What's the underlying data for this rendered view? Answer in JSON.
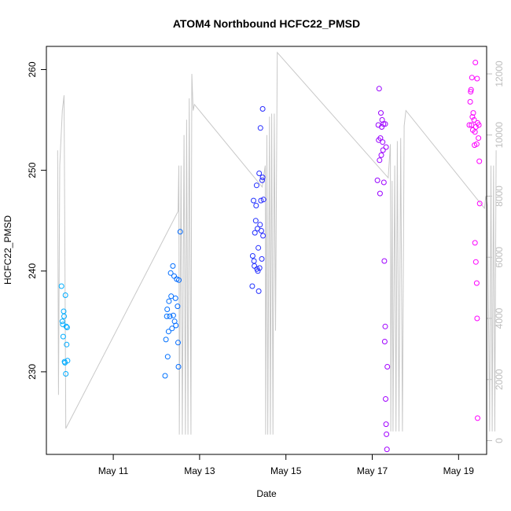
{
  "chart_data": {
    "type": "scatter",
    "title": "ATOM4 Northbound HCFC22_PMSD",
    "xlabel": "Date",
    "ylabel": "HCFC22_PMSD",
    "xlim": [
      9.45,
      19.65
    ],
    "ylim": [
      221.8,
      262.3
    ],
    "y2lim": [
      -450,
      12900
    ],
    "x_ticks": [
      {
        "value": 11,
        "label": "May 11"
      },
      {
        "value": 13,
        "label": "May 13"
      },
      {
        "value": 15,
        "label": "May 15"
      },
      {
        "value": 17,
        "label": "May 17"
      },
      {
        "value": 19,
        "label": "May 19"
      }
    ],
    "y_ticks": [
      230,
      240,
      250,
      260
    ],
    "y2_ticks": [
      0,
      2000,
      4000,
      6000,
      8000,
      10000,
      12000
    ],
    "altitude_trace": {
      "name": "secondary axis (gray line)",
      "color": "#c8c8c8",
      "points": [
        [
          9.71,
          9500
        ],
        [
          9.73,
          1500
        ],
        [
          9.76,
          9000
        ],
        [
          9.82,
          10800
        ],
        [
          9.86,
          11300
        ],
        [
          9.9,
          400
        ],
        [
          12.5,
          7500
        ],
        [
          12.52,
          9000
        ],
        [
          12.53,
          200
        ],
        [
          12.57,
          9000
        ],
        [
          12.6,
          200
        ],
        [
          12.64,
          10000
        ],
        [
          12.67,
          200
        ],
        [
          12.7,
          10500
        ],
        [
          12.73,
          200
        ],
        [
          12.76,
          11200
        ],
        [
          12.8,
          200
        ],
        [
          12.82,
          12000
        ],
        [
          12.85,
          10800
        ],
        [
          12.88,
          11000
        ],
        [
          14.45,
          8300
        ],
        [
          14.52,
          9000
        ],
        [
          14.53,
          200
        ],
        [
          14.56,
          10000
        ],
        [
          14.58,
          200
        ],
        [
          14.62,
          10600
        ],
        [
          14.64,
          200
        ],
        [
          14.67,
          10700
        ],
        [
          14.7,
          200
        ],
        [
          14.73,
          10700
        ],
        [
          14.76,
          3600
        ],
        [
          14.8,
          12700
        ],
        [
          17.37,
          8600
        ],
        [
          17.42,
          9700
        ],
        [
          17.43,
          300
        ],
        [
          17.46,
          8500
        ],
        [
          17.48,
          300
        ],
        [
          17.52,
          9000
        ],
        [
          17.55,
          300
        ],
        [
          17.58,
          9800
        ],
        [
          17.62,
          300
        ],
        [
          17.66,
          9900
        ],
        [
          17.7,
          300
        ],
        [
          17.74,
          10300
        ],
        [
          17.78,
          10800
        ],
        [
          19.6,
          7600
        ],
        [
          19.63,
          8000
        ],
        [
          19.67,
          7700
        ],
        [
          19.72,
          300
        ],
        [
          19.75,
          9000
        ],
        [
          19.78,
          300
        ],
        [
          19.81,
          9000
        ],
        [
          19.84,
          300
        ],
        [
          19.87,
          9500
        ]
      ]
    },
    "series": [
      {
        "name": "HCFC22_PMSD",
        "color_note": "color gradient cyan to magenta over time",
        "points": [
          [
            9.8,
            238.5
          ],
          [
            9.82,
            235.0
          ],
          [
            9.83,
            234.7
          ],
          [
            9.84,
            233.5
          ],
          [
            9.85,
            236.0
          ],
          [
            9.86,
            235.5
          ],
          [
            9.87,
            231.0
          ],
          [
            9.88,
            230.9
          ],
          [
            9.89,
            237.6
          ],
          [
            9.91,
            234.5
          ],
          [
            9.92,
            232.7
          ],
          [
            9.93,
            234.4
          ],
          [
            9.94,
            231.1
          ],
          [
            9.9,
            229.8
          ],
          [
            12.2,
            229.6
          ],
          [
            12.22,
            233.2
          ],
          [
            12.24,
            235.5
          ],
          [
            12.25,
            236.2
          ],
          [
            12.26,
            231.5
          ],
          [
            12.28,
            234.0
          ],
          [
            12.29,
            237.0
          ],
          [
            12.31,
            235.5
          ],
          [
            12.33,
            239.8
          ],
          [
            12.34,
            237.5
          ],
          [
            12.36,
            234.3
          ],
          [
            12.38,
            240.5
          ],
          [
            12.39,
            235.6
          ],
          [
            12.41,
            239.5
          ],
          [
            12.42,
            235.0
          ],
          [
            12.44,
            237.3
          ],
          [
            12.45,
            234.6
          ],
          [
            12.47,
            239.2
          ],
          [
            12.49,
            236.5
          ],
          [
            12.5,
            232.9
          ],
          [
            12.51,
            230.5
          ],
          [
            12.52,
            239.1
          ],
          [
            12.55,
            243.9
          ],
          [
            14.22,
            238.5
          ],
          [
            14.23,
            241.5
          ],
          [
            14.25,
            247.0
          ],
          [
            14.26,
            241.0
          ],
          [
            14.27,
            240.5
          ],
          [
            14.28,
            243.8
          ],
          [
            14.3,
            245.0
          ],
          [
            14.31,
            246.5
          ],
          [
            14.32,
            248.5
          ],
          [
            14.33,
            240.2
          ],
          [
            14.34,
            244.2
          ],
          [
            14.35,
            240.0
          ],
          [
            14.36,
            242.3
          ],
          [
            14.37,
            238.0
          ],
          [
            14.38,
            249.7
          ],
          [
            14.39,
            240.3
          ],
          [
            14.4,
            244.6
          ],
          [
            14.41,
            254.2
          ],
          [
            14.42,
            247.0
          ],
          [
            14.43,
            244.0
          ],
          [
            14.44,
            241.2
          ],
          [
            14.45,
            249.0
          ],
          [
            14.46,
            249.3
          ],
          [
            14.47,
            243.5
          ],
          [
            14.48,
            247.1
          ],
          [
            14.46,
            256.1
          ],
          [
            17.12,
            249.0
          ],
          [
            17.14,
            254.5
          ],
          [
            17.15,
            253.0
          ],
          [
            17.16,
            258.1
          ],
          [
            17.17,
            251.0
          ],
          [
            17.18,
            247.7
          ],
          [
            17.19,
            253.2
          ],
          [
            17.2,
            255.7
          ],
          [
            17.21,
            251.5
          ],
          [
            17.22,
            254.3
          ],
          [
            17.23,
            255.0
          ],
          [
            17.24,
            252.8
          ],
          [
            17.25,
            252.0
          ],
          [
            17.26,
            254.6
          ],
          [
            17.27,
            248.8
          ],
          [
            17.28,
            241.0
          ],
          [
            17.29,
            233.0
          ],
          [
            17.3,
            234.5
          ],
          [
            17.31,
            227.3
          ],
          [
            17.32,
            224.8
          ],
          [
            17.33,
            223.8
          ],
          [
            17.34,
            222.3
          ],
          [
            17.35,
            230.5
          ],
          [
            17.3,
            254.6
          ],
          [
            17.32,
            252.3
          ],
          [
            19.25,
            254.5
          ],
          [
            19.27,
            256.8
          ],
          [
            19.28,
            257.8
          ],
          [
            19.29,
            258.0
          ],
          [
            19.3,
            254.5
          ],
          [
            19.31,
            259.2
          ],
          [
            19.32,
            255.3
          ],
          [
            19.33,
            254.0
          ],
          [
            19.34,
            255.7
          ],
          [
            19.36,
            255.0
          ],
          [
            19.37,
            252.5
          ],
          [
            19.38,
            253.8
          ],
          [
            19.39,
            260.7
          ],
          [
            19.4,
            254.3
          ],
          [
            19.42,
            252.6
          ],
          [
            19.43,
            259.1
          ],
          [
            19.44,
            254.7
          ],
          [
            19.46,
            253.2
          ],
          [
            19.47,
            254.5
          ],
          [
            19.48,
            250.9
          ],
          [
            19.49,
            246.7
          ],
          [
            19.38,
            242.8
          ],
          [
            19.4,
            240.9
          ],
          [
            19.42,
            238.8
          ],
          [
            19.43,
            235.3
          ],
          [
            19.44,
            225.4
          ]
        ]
      }
    ]
  }
}
